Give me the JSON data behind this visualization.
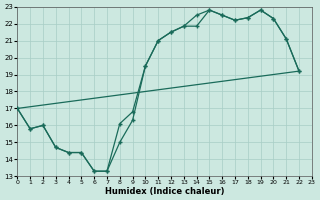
{
  "xlabel": "Humidex (Indice chaleur)",
  "ylabel": "",
  "bg_color": "#cce8e0",
  "grid_color": "#a8cec6",
  "line_color": "#1a6b5a",
  "xmin": 0,
  "xmax": 23,
  "ymin": 13,
  "ymax": 23,
  "line1_x": [
    0,
    1,
    2,
    3,
    4,
    5,
    6,
    7,
    8,
    9,
    10,
    11,
    12,
    13,
    14,
    15,
    16,
    17,
    18,
    19,
    20,
    21,
    22
  ],
  "line1_y": [
    17.0,
    15.8,
    16.0,
    14.7,
    14.4,
    14.4,
    13.3,
    13.3,
    16.1,
    16.8,
    19.5,
    21.0,
    21.5,
    21.85,
    21.85,
    22.8,
    22.5,
    22.2,
    22.35,
    22.8,
    22.3,
    21.1,
    19.2
  ],
  "line2_x": [
    0,
    1,
    2,
    3,
    4,
    5,
    6,
    7,
    8,
    9,
    10,
    11,
    12,
    13,
    14,
    15,
    16,
    17,
    18,
    19,
    20,
    21,
    22
  ],
  "line2_y": [
    17.0,
    15.8,
    16.0,
    14.7,
    14.4,
    14.4,
    13.3,
    13.3,
    15.0,
    16.3,
    19.5,
    21.0,
    21.5,
    21.85,
    22.5,
    22.8,
    22.5,
    22.2,
    22.35,
    22.8,
    22.3,
    21.1,
    19.2
  ]
}
